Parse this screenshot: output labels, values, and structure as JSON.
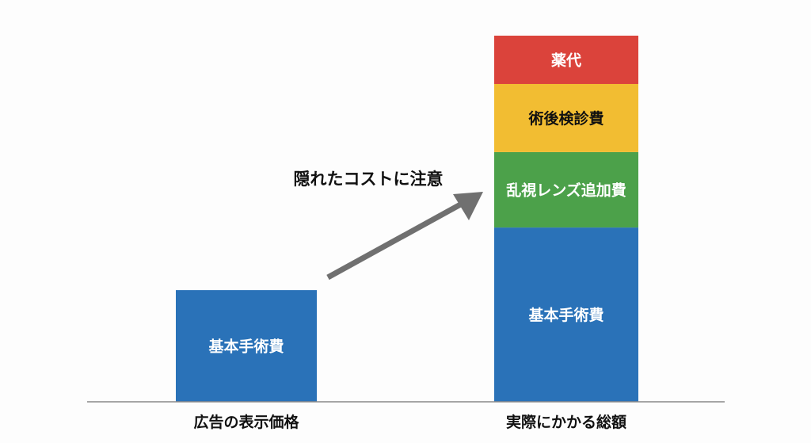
{
  "chart_data": {
    "type": "bar",
    "stacked": true,
    "categories": [
      "広告の表示価格",
      "実際にかかる総額"
    ],
    "ylim": [
      0,
      1
    ],
    "grid": false,
    "series": [
      {
        "name": "基本手術費",
        "color": "#2a72b8",
        "text_color": "#ffffff",
        "values": [
          0.305,
          0.476
        ]
      },
      {
        "name": "乱視レンズ追加費",
        "color": "#4ca14a",
        "text_color": "#ffffff",
        "values": [
          0,
          0.206
        ]
      },
      {
        "name": "術後検診費",
        "color": "#f2bd32",
        "text_color": "#111111",
        "values": [
          0,
          0.186
        ]
      },
      {
        "name": "薬代",
        "color": "#db433b",
        "text_color": "#ffffff",
        "values": [
          0,
          0.132
        ]
      }
    ],
    "annotation": {
      "text": "隠れたコストに注意",
      "arrow_color": "#707070"
    }
  }
}
